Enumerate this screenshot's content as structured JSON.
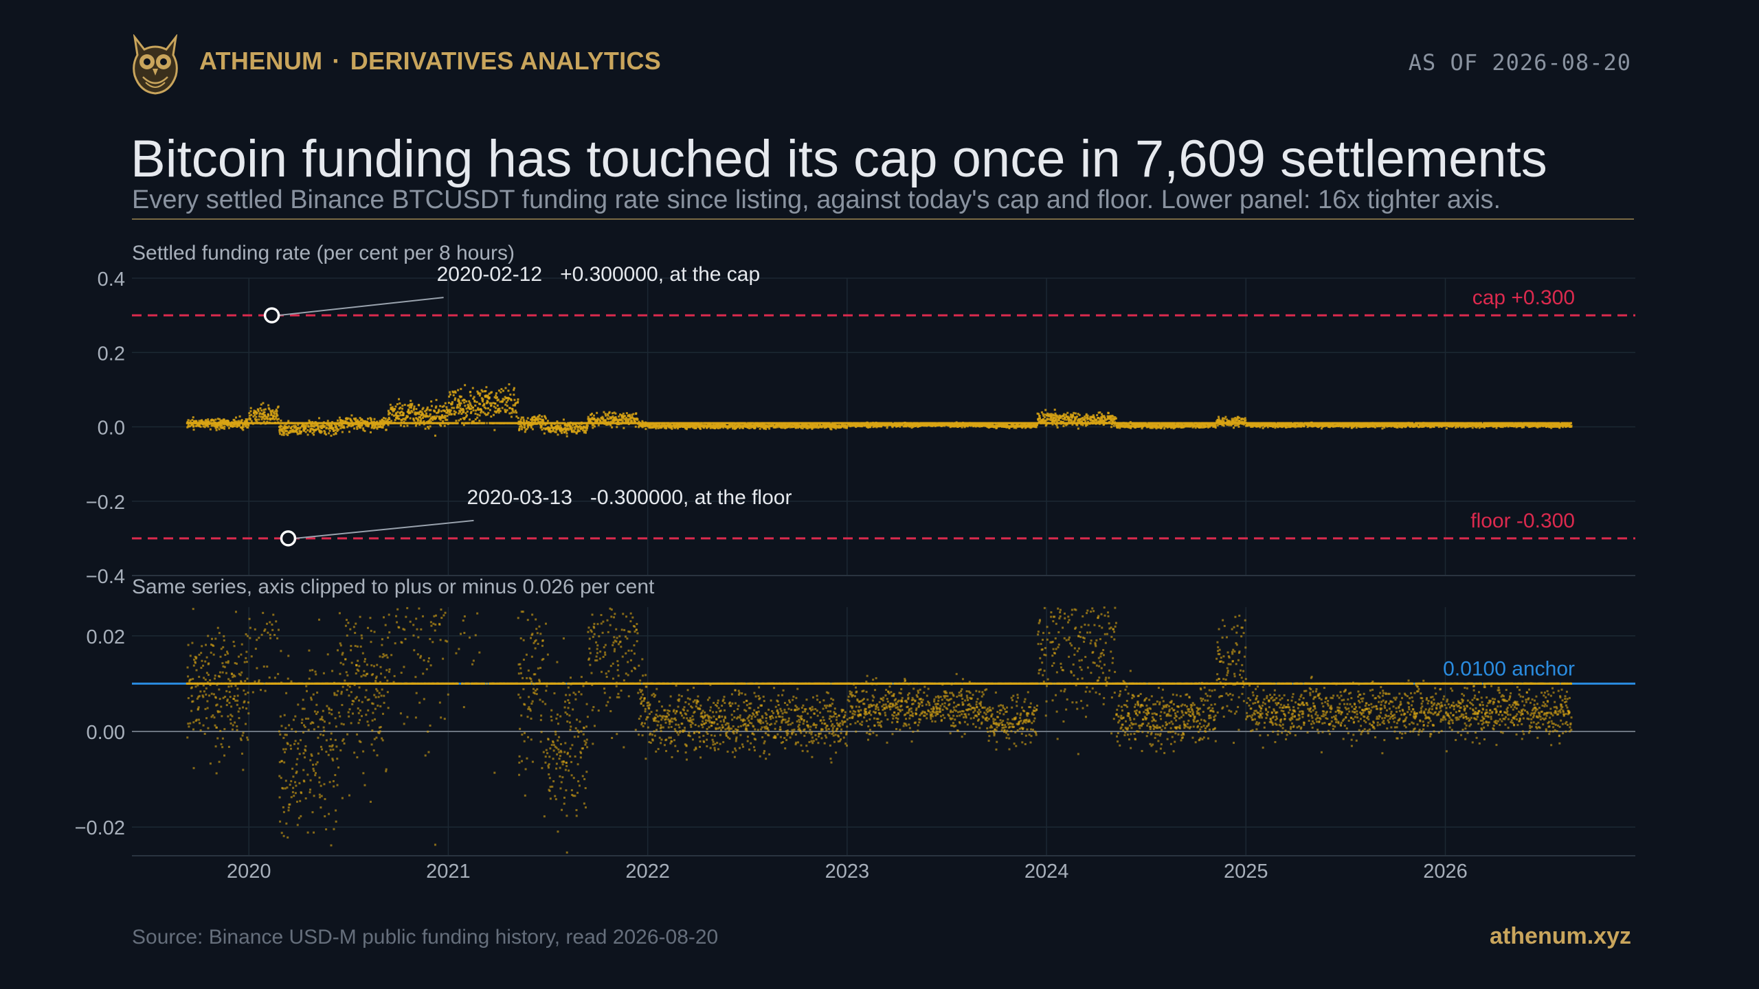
{
  "header": {
    "brand_name": "ATHENUM",
    "brand_separator": "·",
    "brand_section": "DERIVATIVES ANALYTICS",
    "as_of": "AS OF 2026-08-20",
    "logo_icon": "owl-logo-icon"
  },
  "title": "Bitcoin funding has touched its cap once in 7,609 settlements",
  "subtitle": "Every settled Binance BTCUSDT funding rate since listing, against today's cap and floor. Lower panel: 16x tighter axis.",
  "footer": {
    "source": "Source: Binance USD-M public funding history, read 2026-08-20",
    "site": "athenum.xyz"
  },
  "colors": {
    "background": "#0d131d",
    "gold": "#c9a55c",
    "points": "#d9a514",
    "cap_floor": "#dc2a4e",
    "anchor": "#2a8ce0",
    "grid": "#1c2833",
    "zero": "#6c7580"
  },
  "chart_data": [
    {
      "type": "scatter",
      "panel": "upper",
      "ylabel": "Settled funding rate (per cent per 8 hours)",
      "ylim": [
        -0.4,
        0.4
      ],
      "yticks": [
        0.4,
        0.2,
        0.0,
        -0.2,
        -0.4
      ],
      "ytick_labels": [
        "0.4",
        "0.2",
        "0.0",
        "−0.2",
        "−0.4"
      ],
      "xlim": [
        "2019-06-01",
        "2026-12-15"
      ],
      "grid": true,
      "reference_lines": [
        {
          "y": 0.3,
          "label": "cap +0.300",
          "style": "dashed",
          "color": "#dc2a4e"
        },
        {
          "y": -0.3,
          "label": "floor -0.300",
          "style": "dashed",
          "color": "#dc2a4e"
        }
      ],
      "annotations": [
        {
          "date": "2020-02-12",
          "value": 0.3,
          "label_date": "2020-02-12",
          "label_text": "+0.300000, at the cap"
        },
        {
          "date": "2020-03-13",
          "value": -0.3,
          "label_date": "2020-03-13",
          "label_text": "-0.300000, at the floor"
        }
      ],
      "series_range": [
        "2019-09-10",
        "2026-08-20"
      ],
      "settlement_count": 7609
    },
    {
      "type": "scatter",
      "panel": "lower",
      "title": "Same series, axis clipped to plus or minus 0.026 per cent",
      "ylim": [
        -0.026,
        0.026
      ],
      "yticks": [
        0.02,
        0.0,
        -0.02
      ],
      "ytick_labels": [
        "0.02",
        "0.00",
        "−0.02"
      ],
      "xticks": [
        "2020",
        "2021",
        "2022",
        "2023",
        "2024",
        "2025",
        "2026"
      ],
      "grid": true,
      "reference_lines": [
        {
          "y": 0.01,
          "label": "0.0100 anchor",
          "style": "solid",
          "color": "#2a8ce0"
        },
        {
          "y": 0.0,
          "label": "",
          "style": "solid",
          "color": "#6c7580"
        }
      ]
    }
  ]
}
